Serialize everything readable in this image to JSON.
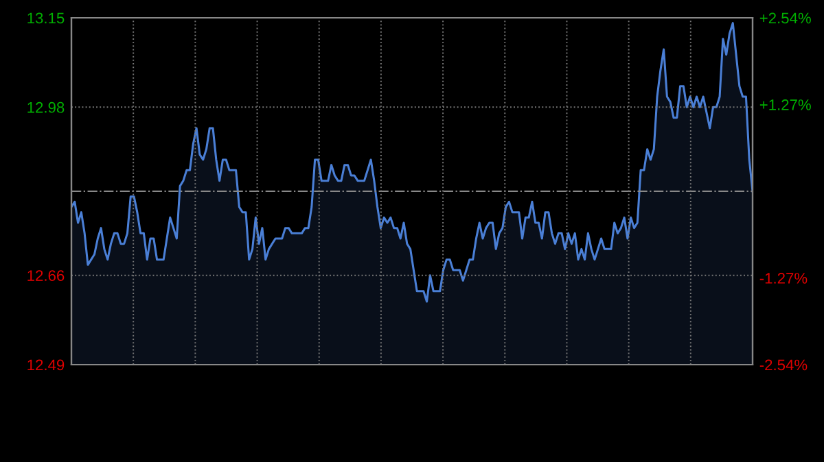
{
  "chart_data": {
    "type": "area",
    "color": "#4a7fd6",
    "values": [
      12.79,
      12.8,
      12.76,
      12.78,
      12.74,
      12.68,
      12.69,
      12.7,
      12.73,
      12.75,
      12.71,
      12.69,
      12.72,
      12.74,
      12.74,
      12.72,
      12.72,
      12.74,
      12.81,
      12.81,
      12.78,
      12.74,
      12.74,
      12.69,
      12.73,
      12.73,
      12.69,
      12.69,
      12.69,
      12.73,
      12.77,
      12.75,
      12.73,
      12.83,
      12.84,
      12.86,
      12.86,
      12.91,
      12.94,
      12.89,
      12.88,
      12.9,
      12.94,
      12.94,
      12.88,
      12.84,
      12.88,
      12.88,
      12.86,
      12.86,
      12.86,
      12.79,
      12.78,
      12.78,
      12.69,
      12.71,
      12.77,
      12.72,
      12.75,
      12.69,
      12.71,
      12.72,
      12.73,
      12.73,
      12.73,
      12.75,
      12.75,
      12.74,
      12.74,
      12.74,
      12.74,
      12.75,
      12.75,
      12.79,
      12.88,
      12.88,
      12.84,
      12.84,
      12.84,
      12.87,
      12.85,
      12.84,
      12.84,
      12.87,
      12.87,
      12.85,
      12.85,
      12.84,
      12.84,
      12.84,
      12.86,
      12.88,
      12.84,
      12.79,
      12.75,
      12.77,
      12.76,
      12.77,
      12.75,
      12.75,
      12.73,
      12.76,
      12.72,
      12.71,
      12.67,
      12.63,
      12.63,
      12.63,
      12.61,
      12.66,
      12.63,
      12.63,
      12.63,
      12.67,
      12.69,
      12.69,
      12.67,
      12.67,
      12.67,
      12.65,
      12.67,
      12.69,
      12.69,
      12.73,
      12.76,
      12.73,
      12.75,
      12.76,
      12.76,
      12.71,
      12.74,
      12.75,
      12.79,
      12.8,
      12.78,
      12.78,
      12.78,
      12.73,
      12.77,
      12.77,
      12.8,
      12.76,
      12.76,
      12.73,
      12.78,
      12.78,
      12.74,
      12.72,
      12.74,
      12.74,
      12.71,
      12.74,
      12.72,
      12.74,
      12.69,
      12.71,
      12.69,
      12.74,
      12.71,
      12.69,
      12.71,
      12.73,
      12.71,
      12.71,
      12.71,
      12.76,
      12.74,
      12.75,
      12.77,
      12.73,
      12.77,
      12.75,
      12.76,
      12.86,
      12.86,
      12.9,
      12.88,
      12.9,
      13.0,
      13.05,
      13.09,
      13.0,
      12.99,
      12.96,
      12.96,
      13.02,
      13.02,
      12.98,
      13.0,
      12.98,
      13.0,
      12.98,
      13.0,
      12.97,
      12.94,
      12.98,
      12.98,
      13.0,
      13.11,
      13.08,
      13.12,
      13.14,
      13.08,
      13.02,
      13.0,
      13.0,
      12.88,
      12.82
    ],
    "ylim": [
      12.49,
      13.15
    ],
    "yticks": [
      12.49,
      12.66,
      12.98,
      13.15
    ],
    "y2lim": [
      -2.54,
      2.54
    ],
    "y2ticks": [
      {
        "value": -2.54,
        "label": "-2.54%"
      },
      {
        "value": -1.27,
        "label": "-1.27%"
      },
      {
        "value": 1.27,
        "label": "+1.27%"
      },
      {
        "value": 2.54,
        "label": "+2.54%"
      }
    ],
    "ref_lines": [
      {
        "axis": "y",
        "value": 12.82,
        "color": "#888888",
        "line_style": "dashdot"
      }
    ],
    "grid": true
  }
}
